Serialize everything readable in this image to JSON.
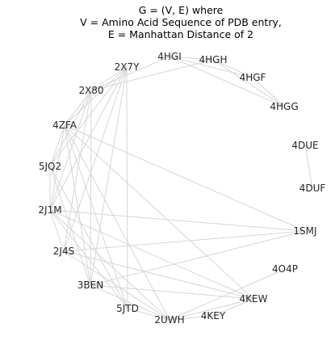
{
  "title": {
    "line1": "G = (V, E) where",
    "line2": "V = Amino Acid Sequence of PDB entry,",
    "line3": "E = Manhattan Distance of 2"
  },
  "nodes": [
    {
      "id": "4HGI",
      "label": "4HGI"
    },
    {
      "id": "4HGH",
      "label": "4HGH"
    },
    {
      "id": "4HGF",
      "label": "4HGF"
    },
    {
      "id": "4HGG",
      "label": "4HGG"
    },
    {
      "id": "4DUE",
      "label": "4DUE"
    },
    {
      "id": "4DUF",
      "label": "4DUF"
    },
    {
      "id": "1SMJ",
      "label": "1SMJ"
    },
    {
      "id": "4O4P",
      "label": "4O4P"
    },
    {
      "id": "4KEW",
      "label": "4KEW"
    },
    {
      "id": "4KEY",
      "label": "4KEY"
    },
    {
      "id": "2UWH",
      "label": "2UWH"
    },
    {
      "id": "5JTD",
      "label": "5JTD"
    },
    {
      "id": "3BEN",
      "label": "3BEN"
    },
    {
      "id": "2J4S",
      "label": "2J4S"
    },
    {
      "id": "2J1M",
      "label": "2J1M"
    },
    {
      "id": "5JQ2",
      "label": "5JQ2"
    },
    {
      "id": "4ZFA",
      "label": "4ZFA"
    },
    {
      "id": "2X80",
      "label": "2X80"
    },
    {
      "id": "2X7Y",
      "label": "2X7Y"
    }
  ],
  "edges": [
    [
      "4HGI",
      "4HGH"
    ],
    [
      "4HGI",
      "4HGF"
    ],
    [
      "4HGI",
      "4HGG"
    ],
    [
      "4HGI",
      "2X80"
    ],
    [
      "4HGH",
      "4HGF"
    ],
    [
      "4HGH",
      "4HGG"
    ],
    [
      "4HGH",
      "2X80"
    ],
    [
      "4HGF",
      "4HGG"
    ],
    [
      "4DUE",
      "4DUF"
    ],
    [
      "2X7Y",
      "2X80"
    ],
    [
      "2X7Y",
      "4ZFA"
    ],
    [
      "2X7Y",
      "5JQ2"
    ],
    [
      "2X7Y",
      "2J1M"
    ],
    [
      "2X7Y",
      "2J4S"
    ],
    [
      "2X7Y",
      "3BEN"
    ],
    [
      "2X7Y",
      "5JTD"
    ],
    [
      "2X80",
      "4ZFA"
    ],
    [
      "2X80",
      "5JQ2"
    ],
    [
      "2X80",
      "2J1M"
    ],
    [
      "2X80",
      "2J4S"
    ],
    [
      "2X80",
      "3BEN"
    ],
    [
      "4ZFA",
      "5JQ2"
    ],
    [
      "4ZFA",
      "2J1M"
    ],
    [
      "4ZFA",
      "1SMJ"
    ],
    [
      "4ZFA",
      "5JTD"
    ],
    [
      "4ZFA",
      "2UWH"
    ],
    [
      "4ZFA",
      "4KEW"
    ],
    [
      "4ZFA",
      "3BEN"
    ],
    [
      "5JQ2",
      "2J1M"
    ],
    [
      "5JQ2",
      "3BEN"
    ],
    [
      "5JQ2",
      "5JTD"
    ],
    [
      "2J1M",
      "2J4S"
    ],
    [
      "2J1M",
      "1SMJ"
    ],
    [
      "2J1M",
      "4KEW"
    ],
    [
      "2J1M",
      "2UWH"
    ],
    [
      "2J1M",
      "5JTD"
    ],
    [
      "2J4S",
      "1SMJ"
    ],
    [
      "2J4S",
      "4KEW"
    ],
    [
      "2J4S",
      "2UWH"
    ],
    [
      "3BEN",
      "1SMJ"
    ],
    [
      "3BEN",
      "4KEW"
    ],
    [
      "3BEN",
      "2UWH"
    ],
    [
      "5JTD",
      "2UWH"
    ],
    [
      "2UWH",
      "4O4P"
    ],
    [
      "2UWH",
      "4KEW"
    ],
    [
      "2UWH",
      "4KEY"
    ],
    [
      "4KEW",
      "4KEY"
    ]
  ]
}
